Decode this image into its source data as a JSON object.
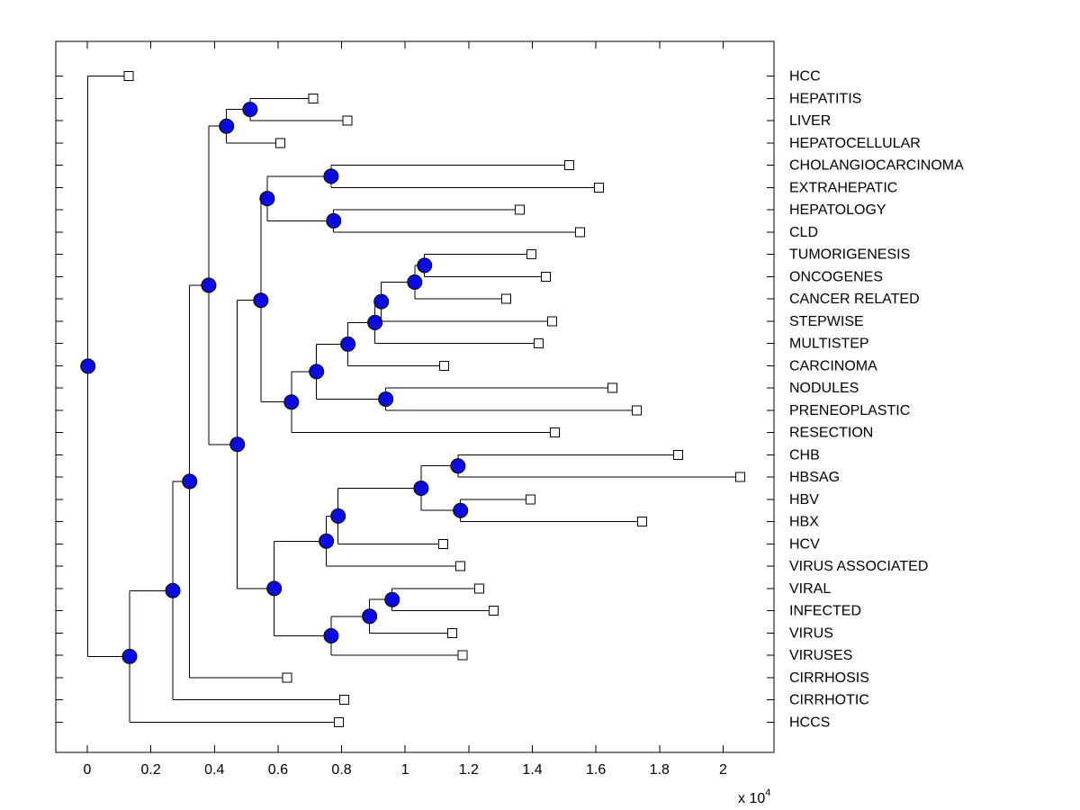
{
  "figure": {
    "background": "#ffffff",
    "kind": "matlab-dendrogram-figure"
  },
  "chart_data": {
    "type": "dendrogram",
    "orientation": "horizontal",
    "title": "",
    "xlabel": "",
    "ylabel": "",
    "x_axis": {
      "tick_values": [
        0,
        0.2,
        0.4,
        0.6,
        0.8,
        1.0,
        1.2,
        1.4,
        1.6,
        1.8,
        2.0
      ],
      "tick_labels": [
        "0",
        "0.2",
        "0.4",
        "0.6",
        "0.8",
        "1",
        "1.2",
        "1.4",
        "1.6",
        "1.8",
        "2"
      ],
      "unit_label_base": "x 10",
      "unit_label_exponent": "4",
      "xlim": [
        -0.1,
        2.16
      ]
    },
    "grid": false,
    "legend": null,
    "leaves": [
      {
        "id": "L0",
        "label": "HCC",
        "x": 0.13
      },
      {
        "id": "L1",
        "label": "HEPATITIS",
        "x": 0.71
      },
      {
        "id": "L2",
        "label": "LIVER",
        "x": 0.818
      },
      {
        "id": "L3",
        "label": "HEPATOCELLULAR",
        "x": 0.608
      },
      {
        "id": "L4",
        "label": "CHOLANGIOCARCINOMA",
        "x": 1.516
      },
      {
        "id": "L5",
        "label": "EXTRAHEPATIC",
        "x": 1.61
      },
      {
        "id": "L6",
        "label": "HEPATOLOGY",
        "x": 1.361
      },
      {
        "id": "L7",
        "label": "CLD",
        "x": 1.55
      },
      {
        "id": "L8",
        "label": "TUMORIGENESIS",
        "x": 1.397
      },
      {
        "id": "L9",
        "label": "ONCOGENES",
        "x": 1.443
      },
      {
        "id": "L10",
        "label": "CANCER RELATED",
        "x": 1.318
      },
      {
        "id": "L11",
        "label": "STEPWISE",
        "x": 1.463
      },
      {
        "id": "L12",
        "label": "MULTISTEP",
        "x": 1.42
      },
      {
        "id": "L13",
        "label": "CARCINOMA",
        "x": 1.123
      },
      {
        "id": "L14",
        "label": "NODULES",
        "x": 1.652
      },
      {
        "id": "L15",
        "label": "PRENEOPLASTIC",
        "x": 1.728
      },
      {
        "id": "L16",
        "label": "RESECTION",
        "x": 1.471
      },
      {
        "id": "L17",
        "label": "CHB",
        "x": 1.859
      },
      {
        "id": "L18",
        "label": "HBSAG",
        "x": 2.054
      },
      {
        "id": "L19",
        "label": "HBV",
        "x": 1.394
      },
      {
        "id": "L20",
        "label": "HBX",
        "x": 1.745
      },
      {
        "id": "L21",
        "label": "HCV",
        "x": 1.12
      },
      {
        "id": "L22",
        "label": "VIRUS ASSOCIATED",
        "x": 1.174
      },
      {
        "id": "L23",
        "label": "VIRAL",
        "x": 1.233
      },
      {
        "id": "L24",
        "label": "INFECTED",
        "x": 1.279
      },
      {
        "id": "L25",
        "label": "VIRUS",
        "x": 1.148
      },
      {
        "id": "L26",
        "label": "VIRUSES",
        "x": 1.18
      },
      {
        "id": "L27",
        "label": "CIRRHOSIS",
        "x": 0.628
      },
      {
        "id": "L28",
        "label": "CIRRHOTIC",
        "x": 0.809
      },
      {
        "id": "L29",
        "label": "HCCS",
        "x": 0.792
      }
    ],
    "merges": [
      {
        "id": "n1",
        "x": 0.512,
        "children": [
          "L1",
          "L2"
        ]
      },
      {
        "id": "n2",
        "x": 0.438,
        "children": [
          "n1",
          "L3"
        ]
      },
      {
        "id": "n3",
        "x": 0.767,
        "children": [
          "L4",
          "L5"
        ]
      },
      {
        "id": "n4",
        "x": 0.775,
        "children": [
          "L6",
          "L7"
        ]
      },
      {
        "id": "n5",
        "x": 0.566,
        "children": [
          "n3",
          "n4"
        ]
      },
      {
        "id": "n6",
        "x": 1.061,
        "children": [
          "L8",
          "L9"
        ]
      },
      {
        "id": "n7",
        "x": 1.03,
        "children": [
          "n6",
          "L10"
        ]
      },
      {
        "id": "n8",
        "x": 0.925,
        "children": [
          "n7",
          "L11"
        ]
      },
      {
        "id": "n9",
        "x": 0.905,
        "children": [
          "n8",
          "L12"
        ]
      },
      {
        "id": "n10",
        "x": 0.82,
        "children": [
          "n9",
          "L13"
        ]
      },
      {
        "id": "n11",
        "x": 0.939,
        "children": [
          "L14",
          "L15"
        ]
      },
      {
        "id": "n12",
        "x": 0.721,
        "children": [
          "n10",
          "n11"
        ]
      },
      {
        "id": "n13",
        "x": 0.642,
        "children": [
          "n12",
          "L16"
        ]
      },
      {
        "id": "n14",
        "x": 0.546,
        "children": [
          "n5",
          "n13"
        ]
      },
      {
        "id": "n17",
        "x": 1.166,
        "children": [
          "L17",
          "L18"
        ]
      },
      {
        "id": "n18",
        "x": 1.174,
        "children": [
          "L19",
          "L20"
        ]
      },
      {
        "id": "n19",
        "x": 1.05,
        "children": [
          "n17",
          "n18"
        ]
      },
      {
        "id": "n20",
        "x": 0.789,
        "children": [
          "n19",
          "L21"
        ]
      },
      {
        "id": "n21",
        "x": 0.752,
        "children": [
          "n20",
          "L22"
        ]
      },
      {
        "id": "n23",
        "x": 0.959,
        "children": [
          "L23",
          "L24"
        ]
      },
      {
        "id": "n24",
        "x": 0.888,
        "children": [
          "n23",
          "L25"
        ]
      },
      {
        "id": "n25",
        "x": 0.767,
        "children": [
          "n24",
          "L26"
        ]
      },
      {
        "id": "n22",
        "x": 0.588,
        "children": [
          "n21",
          "n25"
        ]
      },
      {
        "id": "n16",
        "x": 0.472,
        "children": [
          "n14",
          "n22"
        ]
      },
      {
        "id": "n15",
        "x": 0.382,
        "children": [
          "n2",
          "n16"
        ]
      },
      {
        "id": "n26",
        "x": 0.322,
        "children": [
          "n15",
          "L27"
        ]
      },
      {
        "id": "n27",
        "x": 0.269,
        "children": [
          "n26",
          "L28"
        ]
      },
      {
        "id": "n28",
        "x": 0.133,
        "children": [
          "n27",
          "L29"
        ]
      },
      {
        "id": "n29",
        "x": 0.002,
        "children": [
          "L0",
          "n28"
        ]
      }
    ],
    "root_id": "n29",
    "styles": {
      "line_color": "#000000",
      "internal_node_fill": "#0a0ae0",
      "internal_node_edge": "#000000",
      "leaf_marker_fill": "#ffffff",
      "leaf_marker_edge": "#000000",
      "text_color": "#000000"
    }
  }
}
